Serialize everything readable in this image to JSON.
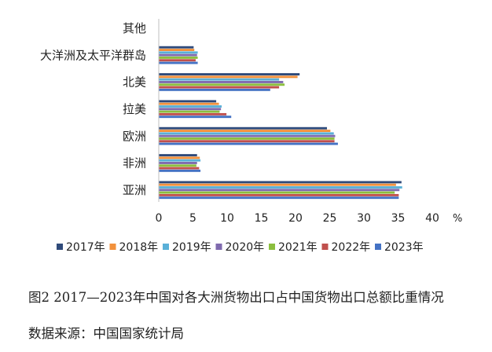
{
  "chart_data": {
    "type": "bar",
    "orientation": "horizontal",
    "categories": [
      "亚洲",
      "非洲",
      "欧洲",
      "拉美",
      "北美",
      "大洋洲及太平洋群岛",
      "其他"
    ],
    "series": [
      {
        "name": "2017年",
        "color": "#2F4A7A",
        "values": [
          35.5,
          5.6,
          24.6,
          8.4,
          20.6,
          5.1,
          0
        ]
      },
      {
        "name": "2018年",
        "color": "#F2913C",
        "values": [
          34.7,
          6.0,
          25.1,
          8.8,
          20.3,
          5.2,
          0
        ]
      },
      {
        "name": "2019年",
        "color": "#5AB0D8",
        "values": [
          35.6,
          6.1,
          25.6,
          9.2,
          17.6,
          5.7,
          0
        ]
      },
      {
        "name": "2020年",
        "color": "#7F6AAE",
        "values": [
          35.2,
          5.6,
          25.8,
          9.1,
          18.2,
          5.6,
          0
        ]
      },
      {
        "name": "2021年",
        "color": "#8CBF3F",
        "values": [
          34.5,
          5.5,
          25.7,
          8.9,
          18.4,
          5.7,
          0
        ]
      },
      {
        "name": "2022年",
        "color": "#C0504D",
        "values": [
          35.1,
          5.9,
          25.7,
          9.9,
          17.6,
          5.4,
          0
        ]
      },
      {
        "name": "2023年",
        "color": "#4472C4",
        "values": [
          35.1,
          6.1,
          26.2,
          10.6,
          16.3,
          5.7,
          0
        ]
      }
    ],
    "xlim": [
      0,
      40
    ],
    "xticks": [
      "0",
      "5",
      "10",
      "15",
      "20",
      "25",
      "30",
      "35",
      "40"
    ],
    "unit": "%",
    "legend": "bottom",
    "grid": false
  },
  "caption": {
    "title": "图2  2017—2023年中国对各大洲货物出口占中国货物出口总额比重情况",
    "source": "数据来源：中国国家统计局"
  }
}
